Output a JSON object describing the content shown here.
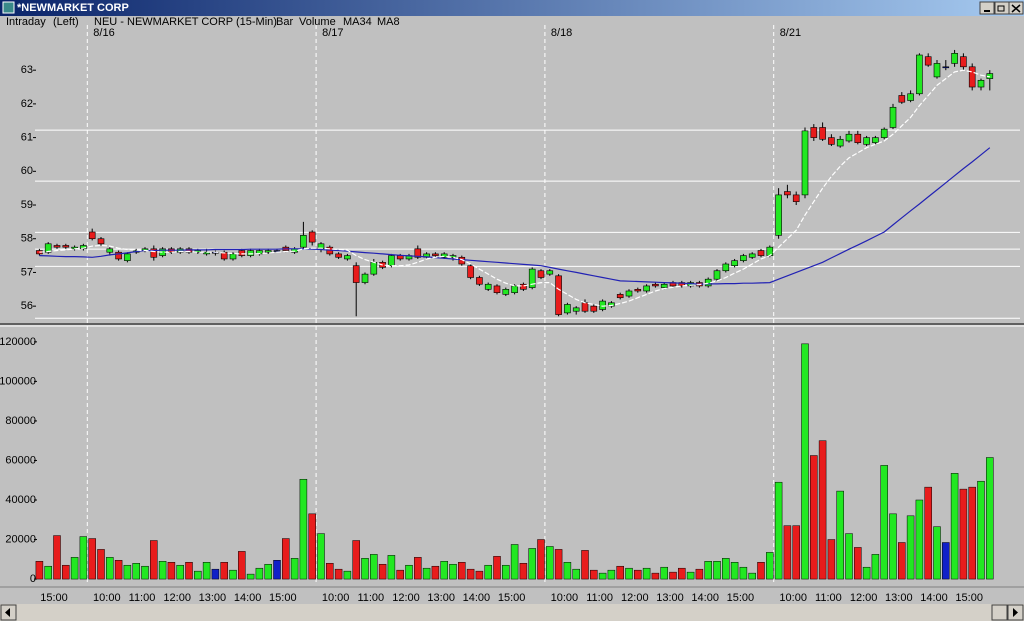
{
  "window": {
    "title": "*NEWMARKET CORP"
  },
  "header": {
    "mode": "Intraday",
    "axis_side": "(Left)",
    "symbol": "NEU - NEWMARKET CORP (15-Min)",
    "style": "Bar"
  },
  "chart_data": [
    {
      "type": "candlestick",
      "categories": [
        null,
        null,
        null,
        null,
        null,
        null,
        "8/16",
        null,
        null,
        null,
        null,
        null,
        null,
        null,
        null,
        null,
        null,
        null,
        null,
        null,
        null,
        null,
        null,
        null,
        null,
        null,
        null,
        null,
        null,
        null,
        null,
        null,
        "8/17",
        null,
        null,
        null,
        null,
        null,
        null,
        null,
        null,
        null,
        null,
        null,
        null,
        null,
        null,
        null,
        null,
        null,
        null,
        null,
        null,
        null,
        null,
        null,
        null,
        null,
        "8/18",
        null,
        null,
        null,
        null,
        null,
        null,
        null,
        null,
        null,
        null,
        null,
        null,
        null,
        null,
        null,
        null,
        null,
        null,
        null,
        null,
        null,
        null,
        null,
        null,
        null,
        "8/21",
        null,
        null,
        null,
        null,
        null,
        null,
        null,
        null,
        null,
        null,
        null,
        null,
        null,
        null,
        null,
        null,
        null,
        null,
        null,
        null,
        null,
        null,
        null,
        null
      ],
      "open": [
        57.65,
        57.6,
        57.8,
        57.8,
        57.7,
        57.7,
        58.2,
        58.0,
        57.6,
        57.6,
        57.35,
        57.6,
        57.65,
        57.7,
        57.5,
        57.7,
        57.6,
        57.7,
        57.6,
        57.55,
        57.6,
        57.6,
        57.4,
        57.65,
        57.5,
        57.55,
        57.6,
        57.65,
        57.75,
        57.6,
        57.75,
        58.2,
        57.7,
        57.75,
        57.55,
        57.4,
        57.2,
        56.7,
        56.95,
        57.3,
        57.2,
        57.5,
        57.4,
        57.7,
        57.45,
        57.55,
        57.45,
        57.45,
        57.45,
        57.2,
        56.85,
        56.5,
        56.6,
        56.35,
        56.4,
        56.65,
        56.55,
        57.05,
        56.95,
        56.9,
        55.8,
        55.85,
        56.1,
        56.0,
        55.9,
        56.0,
        56.35,
        56.3,
        56.5,
        56.45,
        56.65,
        56.55,
        56.7,
        56.7,
        56.6,
        56.7,
        56.6,
        56.8,
        57.05,
        57.2,
        57.35,
        57.45,
        57.65,
        57.5,
        58.1,
        59.4,
        59.3,
        59.3,
        61.3,
        61.3,
        61.0,
        60.75,
        60.9,
        61.1,
        60.8,
        60.85,
        61.0,
        61.3,
        62.25,
        62.1,
        62.3,
        63.4,
        62.8,
        63.1,
        63.2,
        63.4,
        63.1,
        62.5,
        62.75
      ],
      "high": [
        57.7,
        57.9,
        57.85,
        57.85,
        57.8,
        57.85,
        58.3,
        58.05,
        57.75,
        57.65,
        57.6,
        57.7,
        57.75,
        57.8,
        57.75,
        57.75,
        57.75,
        57.75,
        57.7,
        57.7,
        57.65,
        57.65,
        57.6,
        57.7,
        57.7,
        57.7,
        57.7,
        57.7,
        57.8,
        57.75,
        58.5,
        58.25,
        57.9,
        57.8,
        57.6,
        57.55,
        57.3,
        57.0,
        57.4,
        57.35,
        57.55,
        57.55,
        57.55,
        57.8,
        57.6,
        57.6,
        57.6,
        57.55,
        57.5,
        57.25,
        56.9,
        56.7,
        56.65,
        56.55,
        56.65,
        56.7,
        57.15,
        57.1,
        57.1,
        56.95,
        56.1,
        56.0,
        56.2,
        56.05,
        56.2,
        56.15,
        56.4,
        56.5,
        56.55,
        56.65,
        56.7,
        56.7,
        56.75,
        56.75,
        56.75,
        56.75,
        56.85,
        57.1,
        57.3,
        57.4,
        57.55,
        57.6,
        57.7,
        57.8,
        59.5,
        59.6,
        59.4,
        61.3,
        61.4,
        61.45,
        61.1,
        61.05,
        61.2,
        61.2,
        61.05,
        61.05,
        61.3,
        62.0,
        62.35,
        62.4,
        63.5,
        63.5,
        63.3,
        63.3,
        63.6,
        63.5,
        63.2,
        62.75,
        63.0
      ],
      "low": [
        57.5,
        57.55,
        57.7,
        57.7,
        57.65,
        57.65,
        57.95,
        57.8,
        57.5,
        57.35,
        57.3,
        57.55,
        57.6,
        57.35,
        57.45,
        57.55,
        57.55,
        57.55,
        57.55,
        57.5,
        57.5,
        57.35,
        57.35,
        57.45,
        57.45,
        57.5,
        57.55,
        57.6,
        57.6,
        57.55,
        57.7,
        57.8,
        57.6,
        57.5,
        57.4,
        57.35,
        55.7,
        56.65,
        56.9,
        57.1,
        57.15,
        57.35,
        57.35,
        57.4,
        57.4,
        57.45,
        57.4,
        57.35,
        57.2,
        56.8,
        56.6,
        56.45,
        56.35,
        56.3,
        56.35,
        56.45,
        56.5,
        56.8,
        56.9,
        55.7,
        55.75,
        55.75,
        55.8,
        55.8,
        55.85,
        55.95,
        56.2,
        56.25,
        56.4,
        56.4,
        56.55,
        56.5,
        56.55,
        56.55,
        56.55,
        56.55,
        56.55,
        56.75,
        57.0,
        57.15,
        57.3,
        57.4,
        57.45,
        57.45,
        58.0,
        59.2,
        59.0,
        59.2,
        60.9,
        60.9,
        60.75,
        60.7,
        60.85,
        60.8,
        60.75,
        60.8,
        60.95,
        61.25,
        62.0,
        62.05,
        62.25,
        63.1,
        62.75,
        63.0,
        63.1,
        63.0,
        62.4,
        62.4,
        62.4
      ],
      "close": [
        57.55,
        57.85,
        57.75,
        57.75,
        57.75,
        57.8,
        58.0,
        57.85,
        57.7,
        57.4,
        57.55,
        57.65,
        57.7,
        57.45,
        57.7,
        57.6,
        57.7,
        57.6,
        57.65,
        57.6,
        57.6,
        57.4,
        57.55,
        57.5,
        57.65,
        57.65,
        57.65,
        57.65,
        57.65,
        57.7,
        58.1,
        57.9,
        57.85,
        57.55,
        57.45,
        57.5,
        56.7,
        56.95,
        57.3,
        57.15,
        57.5,
        57.4,
        57.5,
        57.45,
        57.55,
        57.5,
        57.55,
        57.5,
        57.25,
        56.85,
        56.65,
        56.65,
        56.4,
        56.5,
        56.6,
        56.5,
        57.1,
        56.85,
        57.05,
        55.75,
        56.05,
        55.95,
        55.85,
        55.85,
        56.15,
        56.1,
        56.25,
        56.45,
        56.45,
        56.6,
        56.6,
        56.65,
        56.6,
        56.6,
        56.7,
        56.6,
        56.8,
        57.05,
        57.25,
        57.35,
        57.5,
        57.55,
        57.5,
        57.75,
        59.3,
        59.3,
        59.1,
        61.2,
        61.0,
        60.95,
        60.8,
        60.95,
        61.1,
        60.85,
        61.0,
        61.0,
        61.25,
        61.9,
        62.05,
        62.3,
        63.45,
        63.15,
        63.2,
        63.1,
        63.5,
        63.1,
        62.5,
        62.7,
        62.9
      ],
      "up_color": "#22e822",
      "down_color": "#e81c1c",
      "flat_color": "#1020c8",
      "series": [
        {
          "name": "MA34",
          "color": "#2222b4",
          "values": [
            57.5,
            57.49,
            57.48,
            57.47,
            57.47,
            57.46,
            57.45,
            57.48,
            57.52,
            57.55,
            57.58,
            57.62,
            57.65,
            57.65,
            57.66,
            57.66,
            57.66,
            57.67,
            57.67,
            57.67,
            57.68,
            57.68,
            57.68,
            57.68,
            57.69,
            57.69,
            57.69,
            57.69,
            57.7,
            57.7,
            57.7,
            57.69,
            57.68,
            57.66,
            57.65,
            57.63,
            57.61,
            57.59,
            57.57,
            57.55,
            57.53,
            57.51,
            57.49,
            57.48,
            57.46,
            57.44,
            57.42,
            57.4,
            57.38,
            57.36,
            57.34,
            57.32,
            57.3,
            57.28,
            57.26,
            57.24,
            57.22,
            57.2,
            57.15,
            57.1,
            57.05,
            57.0,
            56.95,
            56.9,
            56.85,
            56.8,
            56.75,
            56.74,
            56.73,
            56.72,
            56.71,
            56.7,
            56.69,
            56.68,
            56.67,
            56.65,
            56.66,
            56.66,
            56.67,
            56.67,
            56.68,
            56.68,
            56.69,
            56.7,
            56.8,
            56.9,
            57.0,
            57.1,
            57.2,
            57.3,
            57.43,
            57.56,
            57.69,
            57.81,
            57.94,
            58.07,
            58.2,
            58.41,
            58.62,
            58.83,
            59.03,
            59.24,
            59.45,
            59.66,
            59.87,
            60.08,
            60.28,
            60.49,
            60.7
          ]
        },
        {
          "name": "MA8",
          "color": "#ffffff",
          "values": [
            57.6,
            57.62,
            57.65,
            57.67,
            57.7,
            57.72,
            57.78,
            57.8,
            57.78,
            57.72,
            57.68,
            57.66,
            57.65,
            57.62,
            57.6,
            57.6,
            57.62,
            57.62,
            57.6,
            57.6,
            57.6,
            57.58,
            57.56,
            57.55,
            57.55,
            57.56,
            57.58,
            57.6,
            57.62,
            57.63,
            57.7,
            57.72,
            57.72,
            57.7,
            57.68,
            57.66,
            57.5,
            57.38,
            57.3,
            57.22,
            57.2,
            57.2,
            57.22,
            57.3,
            57.4,
            57.45,
            57.48,
            57.45,
            57.38,
            57.25,
            57.1,
            56.95,
            56.8,
            56.68,
            56.6,
            56.6,
            56.65,
            56.7,
            56.7,
            56.5,
            56.35,
            56.2,
            56.1,
            56.05,
            56.0,
            56.02,
            56.08,
            56.15,
            56.25,
            56.35,
            56.45,
            56.52,
            56.56,
            56.6,
            56.62,
            56.64,
            56.68,
            56.75,
            56.85,
            56.98,
            57.1,
            57.25,
            57.4,
            57.5,
            57.75,
            58.0,
            58.25,
            58.7,
            59.1,
            59.5,
            59.85,
            60.15,
            60.4,
            60.55,
            60.7,
            60.8,
            60.9,
            61.1,
            61.35,
            61.6,
            61.95,
            62.25,
            62.55,
            62.75,
            62.95,
            63.0,
            62.95,
            62.85,
            62.8
          ]
        }
      ],
      "levels": [
        61.22,
        59.71,
        58.19,
        57.69,
        57.18,
        55.64
      ],
      "ylim": [
        55.53,
        64.34
      ],
      "yticks": [
        56,
        57,
        58,
        59,
        60,
        61,
        62,
        63
      ]
    },
    {
      "type": "bar",
      "categories": [
        null,
        null,
        "15:00",
        null,
        null,
        null,
        null,
        null,
        "10:00",
        null,
        null,
        null,
        "11:00",
        null,
        null,
        null,
        "12:00",
        null,
        null,
        null,
        "13:00",
        null,
        null,
        null,
        "14:00",
        null,
        null,
        null,
        "15:00",
        null,
        null,
        null,
        null,
        null,
        "10:00",
        null,
        null,
        null,
        "11:00",
        null,
        null,
        null,
        "12:00",
        null,
        null,
        null,
        "13:00",
        null,
        null,
        null,
        "14:00",
        null,
        null,
        null,
        "15:00",
        null,
        null,
        null,
        null,
        null,
        "10:00",
        null,
        null,
        null,
        "11:00",
        null,
        null,
        null,
        "12:00",
        null,
        null,
        null,
        "13:00",
        null,
        null,
        null,
        "14:00",
        null,
        null,
        null,
        "15:00",
        null,
        null,
        null,
        null,
        null,
        "10:00",
        null,
        null,
        null,
        "11:00",
        null,
        null,
        null,
        "12:00",
        null,
        null,
        null,
        "13:00",
        null,
        null,
        null,
        "14:00",
        null,
        null,
        null,
        "15:00",
        null,
        null
      ],
      "series": [
        {
          "name": "Volume",
          "color": "#0000ff",
          "values": [
            9000,
            6500,
            22000,
            7000,
            11000,
            21500,
            20500,
            15000,
            11000,
            9500,
            7000,
            8000,
            6500,
            19500,
            9000,
            8500,
            7000,
            8500,
            4000,
            8500,
            5000,
            8500,
            4500,
            14000,
            2500,
            5500,
            7500,
            9500,
            20500,
            10500,
            50500,
            33000,
            23000,
            8000,
            5000,
            4000,
            19500,
            10500,
            12500,
            7500,
            12000,
            4500,
            7000,
            11000,
            5500,
            6500,
            9000,
            7500,
            8500,
            5000,
            4000,
            7000,
            11500,
            7000,
            17500,
            8000,
            15500,
            20000,
            16500,
            15000,
            8500,
            5000,
            14500,
            4500,
            3000,
            4500,
            6500,
            5500,
            4500,
            5500,
            3000,
            6000,
            3500,
            5500,
            3500,
            5000,
            9000,
            9000,
            10500,
            8500,
            6000,
            3000,
            8500,
            13500,
            49000,
            27000,
            27000,
            119000,
            62500,
            70000,
            20000,
            44500,
            23000,
            16000,
            6000,
            12500,
            57500,
            33000,
            18500,
            32000,
            40000,
            46500,
            26500,
            18500,
            53500,
            45500,
            46500,
            49500,
            61500
          ]
        }
      ],
      "ylim": [
        -3000,
        126000
      ],
      "yticks": [
        0,
        20000,
        40000,
        60000,
        80000,
        100000,
        120000
      ]
    }
  ]
}
